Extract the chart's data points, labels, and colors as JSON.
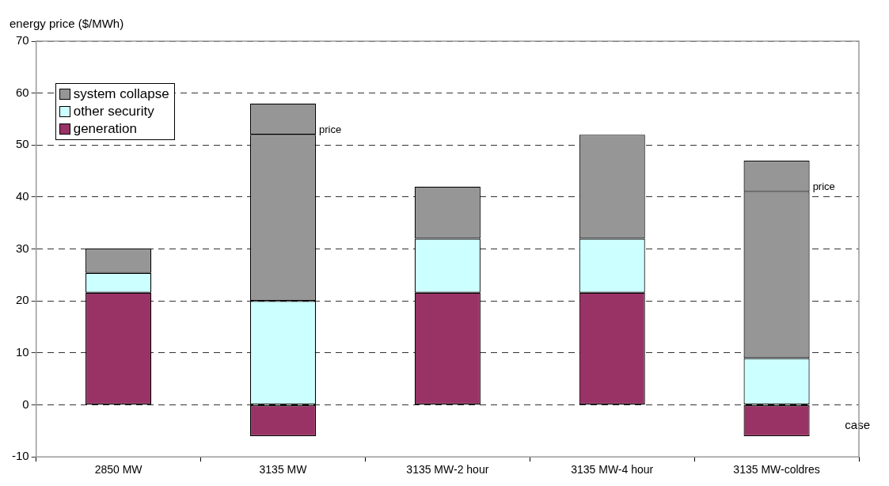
{
  "chart_data": {
    "type": "bar",
    "stacked": true,
    "ylabel": "energy price ($/MWh)",
    "xlabel": "case",
    "categories": [
      "2850 MW",
      "3135 MW",
      "3135 MW-2 hour",
      "3135 MW-4 hour",
      "3135 MW-coldres"
    ],
    "series": [
      {
        "name": "generation",
        "color": "#993366",
        "values": [
          21.6,
          -6,
          21.6,
          21.6,
          -6
        ]
      },
      {
        "name": "other security",
        "color": "#ccffff",
        "values": [
          3.8,
          20,
          10.4,
          10.4,
          9
        ]
      },
      {
        "name": "system collapse",
        "color": "#969696",
        "values": [
          4.7,
          32,
          10,
          20,
          32
        ]
      },
      {
        "color": "#969696",
        "values": [
          null,
          6,
          null,
          null,
          6
        ]
      }
    ],
    "ylim": [
      -10,
      70
    ],
    "yticks": [
      -10,
      0,
      10,
      20,
      30,
      40,
      50,
      60,
      70
    ],
    "grid": "y",
    "legend": "top left",
    "annotations": [
      "price",
      "price"
    ]
  }
}
